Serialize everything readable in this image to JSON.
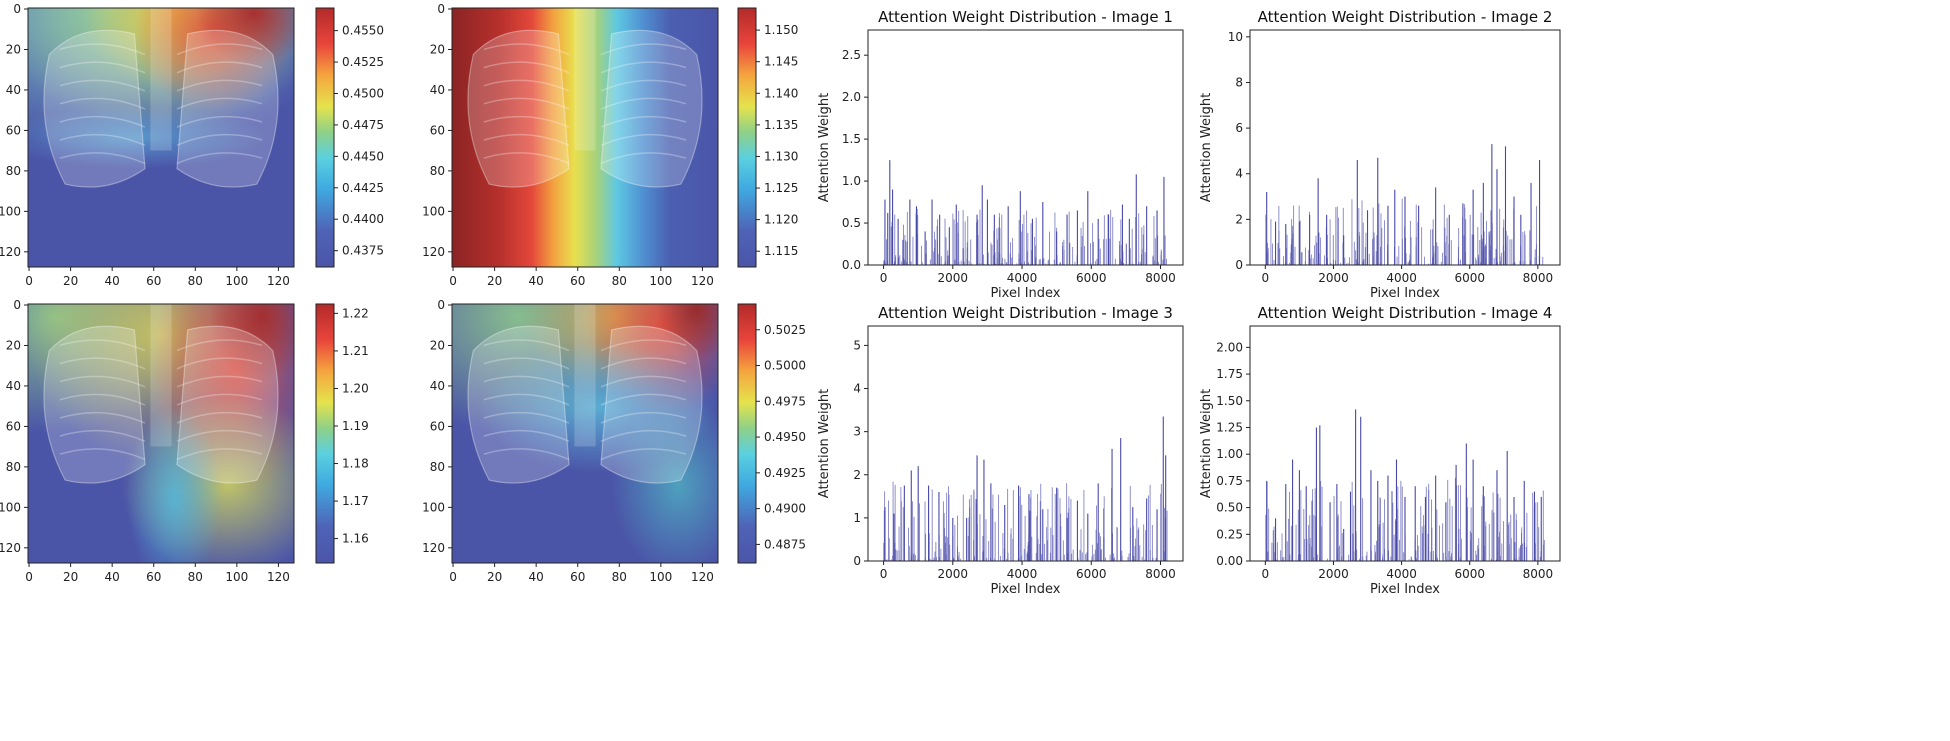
{
  "heatmaps": [
    {
      "id": "hm1",
      "xticks": [
        0,
        20,
        40,
        60,
        80,
        100,
        120
      ],
      "yticks": [
        0,
        20,
        40,
        60,
        80,
        100,
        120
      ],
      "extent": [
        0,
        128
      ],
      "colorbar": {
        "range": [
          0.4362,
          0.4568
        ],
        "ticks": [
          "0.4375",
          "0.4400",
          "0.4425",
          "0.4450",
          "0.4475",
          "0.4500",
          "0.4525",
          "0.4550"
        ],
        "tick_values": [
          0.4375,
          0.44,
          0.4425,
          0.445,
          0.4475,
          0.45,
          0.4525,
          0.455
        ]
      }
    },
    {
      "id": "hm2",
      "xticks": [
        0,
        20,
        40,
        60,
        80,
        100,
        120
      ],
      "yticks": [
        0,
        20,
        40,
        60,
        80,
        100,
        120
      ],
      "extent": [
        0,
        128
      ],
      "colorbar": {
        "range": [
          1.1125,
          1.1535
        ],
        "ticks": [
          "1.115",
          "1.120",
          "1.125",
          "1.130",
          "1.135",
          "1.140",
          "1.145",
          "1.150"
        ],
        "tick_values": [
          1.115,
          1.12,
          1.125,
          1.13,
          1.135,
          1.14,
          1.145,
          1.15
        ]
      }
    },
    {
      "id": "hm3",
      "xticks": [
        0,
        20,
        40,
        60,
        80,
        100,
        120
      ],
      "yticks": [
        0,
        20,
        40,
        60,
        80,
        100,
        120
      ],
      "extent": [
        0,
        128
      ],
      "colorbar": {
        "range": [
          1.1535,
          1.2225
        ],
        "ticks": [
          "1.16",
          "1.17",
          "1.18",
          "1.19",
          "1.20",
          "1.21",
          "1.22"
        ],
        "tick_values": [
          1.16,
          1.17,
          1.18,
          1.19,
          1.2,
          1.21,
          1.22
        ]
      }
    },
    {
      "id": "hm4",
      "xticks": [
        0,
        20,
        40,
        60,
        80,
        100,
        120
      ],
      "yticks": [
        0,
        20,
        40,
        60,
        80,
        100,
        120
      ],
      "extent": [
        0,
        128
      ],
      "colorbar": {
        "range": [
          0.4862,
          0.5043
        ],
        "ticks": [
          "0.4875",
          "0.4900",
          "0.4925",
          "0.4950",
          "0.4975",
          "0.5000",
          "0.5025"
        ],
        "tick_values": [
          0.4875,
          0.49,
          0.4925,
          0.495,
          0.4975,
          0.5,
          0.5025
        ]
      }
    }
  ],
  "chart_data": [
    {
      "type": "bar",
      "title": "Attention Weight Distribution - Image 1",
      "xlabel": "Pixel Index",
      "ylabel": "Attention Weight",
      "xlim": [
        -450,
        8650
      ],
      "ylim": [
        0,
        2.8
      ],
      "xticks": [
        0,
        2000,
        4000,
        6000,
        8000
      ],
      "yticks": [
        "0.0",
        "0.5",
        "1.0",
        "1.5",
        "2.0",
        "2.5"
      ],
      "ytick_values": [
        0,
        0.5,
        1,
        1.5,
        2,
        2.5
      ],
      "x": [
        40,
        120,
        180,
        260,
        420,
        560,
        760,
        950,
        1200,
        1400,
        1620,
        1900,
        2100,
        2300,
        2700,
        2850,
        3000,
        3200,
        3600,
        3950,
        4300,
        4600,
        5000,
        5300,
        5600,
        5900,
        6200,
        6500,
        6900,
        7100,
        7300,
        7600,
        7900,
        8100
      ],
      "values": [
        0.78,
        0.62,
        1.25,
        0.9,
        0.55,
        0.3,
        0.78,
        0.7,
        0.4,
        0.78,
        0.6,
        0.45,
        0.72,
        0.2,
        0.6,
        0.95,
        0.78,
        0.6,
        0.7,
        0.88,
        0.55,
        0.75,
        0.4,
        0.6,
        0.65,
        0.88,
        0.55,
        0.6,
        0.72,
        0.55,
        1.08,
        0.7,
        0.65,
        1.05
      ]
    },
    {
      "type": "bar",
      "title": "Attention Weight Distribution - Image 2",
      "xlabel": "Pixel Index",
      "ylabel": "Attention Weight",
      "xlim": [
        -450,
        8650
      ],
      "ylim": [
        0,
        10.3
      ],
      "xticks": [
        0,
        2000,
        4000,
        6000,
        8000
      ],
      "yticks": [
        "0",
        "2",
        "4",
        "6",
        "8",
        "10"
      ],
      "ytick_values": [
        0,
        2,
        4,
        6,
        8,
        10
      ],
      "x": [
        40,
        300,
        600,
        1000,
        1300,
        1550,
        1800,
        2300,
        2700,
        3000,
        3300,
        3600,
        3800,
        4100,
        4500,
        5000,
        5400,
        5800,
        6100,
        6400,
        6650,
        6800,
        7050,
        7300,
        7500,
        7800,
        8050
      ],
      "values": [
        3.2,
        1.9,
        1.8,
        1.9,
        2.2,
        3.8,
        2.2,
        1.3,
        4.6,
        2.4,
        4.7,
        2.6,
        3.3,
        3.0,
        2.6,
        3.4,
        2.2,
        2.7,
        3.3,
        3.6,
        5.3,
        4.2,
        5.2,
        3.0,
        2.2,
        3.6,
        4.6
      ]
    },
    {
      "type": "bar",
      "title": "Attention Weight Distribution - Image 3",
      "xlabel": "Pixel Index",
      "ylabel": "Attention Weight",
      "xlim": [
        -450,
        8650
      ],
      "ylim": [
        0,
        5.45
      ],
      "xticks": [
        0,
        2000,
        4000,
        6000,
        8000
      ],
      "yticks": [
        "0",
        "1",
        "2",
        "3",
        "4",
        "5"
      ],
      "ytick_values": [
        0,
        1,
        2,
        3,
        4,
        5
      ],
      "x": [
        40,
        300,
        600,
        800,
        1000,
        1300,
        1600,
        2000,
        2400,
        2700,
        2900,
        3100,
        3500,
        3900,
        4200,
        4600,
        5000,
        5300,
        5600,
        5900,
        6200,
        6600,
        6850,
        7200,
        7600,
        7900,
        8080,
        8150
      ],
      "values": [
        1.25,
        1.1,
        1.75,
        2.1,
        2.2,
        1.75,
        1.6,
        1.0,
        1.0,
        2.45,
        2.35,
        1.8,
        1.3,
        1.75,
        1.55,
        1.2,
        1.7,
        1.0,
        1.4,
        1.1,
        1.8,
        2.6,
        2.85,
        1.25,
        1.45,
        1.2,
        3.35,
        2.45
      ]
    },
    {
      "type": "bar",
      "title": "Attention Weight Distribution - Image 4",
      "xlabel": "Pixel Index",
      "ylabel": "Attention Weight",
      "xlim": [
        -450,
        8650
      ],
      "ylim": [
        0,
        2.2
      ],
      "xticks": [
        0,
        2000,
        4000,
        6000,
        8000
      ],
      "yticks": [
        "0.00",
        "0.25",
        "0.50",
        "0.75",
        "1.00",
        "1.25",
        "1.50",
        "1.75",
        "2.00"
      ],
      "ytick_values": [
        0,
        0.25,
        0.5,
        0.75,
        1,
        1.25,
        1.5,
        1.75,
        2
      ],
      "x": [
        40,
        300,
        600,
        800,
        1000,
        1200,
        1500,
        1600,
        1900,
        2100,
        2300,
        2500,
        2650,
        2800,
        3100,
        3300,
        3600,
        3850,
        4100,
        4400,
        4700,
        5000,
        5300,
        5600,
        5900,
        6100,
        6400,
        6800,
        7100,
        7300,
        7600,
        7900,
        8100
      ],
      "values": [
        0.75,
        0.4,
        0.72,
        0.95,
        0.85,
        0.7,
        1.25,
        1.27,
        0.55,
        0.72,
        0.3,
        0.65,
        1.42,
        1.35,
        0.85,
        0.75,
        0.8,
        0.95,
        0.6,
        0.7,
        0.6,
        0.8,
        0.55,
        0.9,
        1.1,
        0.95,
        0.7,
        0.85,
        1.03,
        0.6,
        0.75,
        0.65,
        0.6
      ]
    }
  ]
}
